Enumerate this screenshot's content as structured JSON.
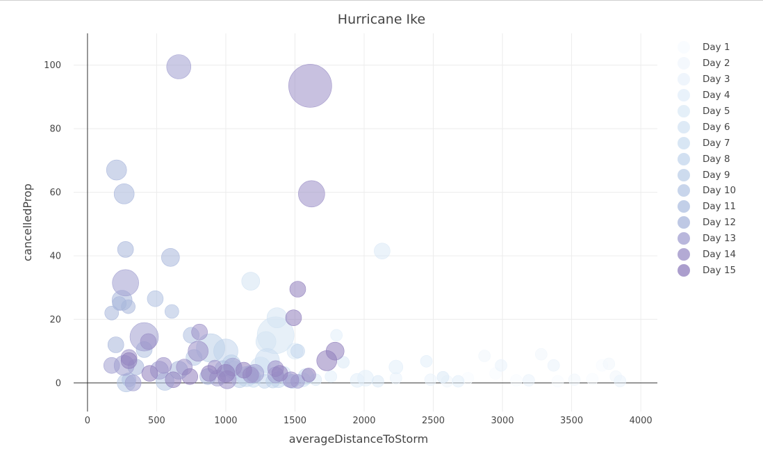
{
  "chart_data": {
    "type": "scatter",
    "title": "Hurricane Ike",
    "xlabel": "averageDistanceToStorm",
    "ylabel": "cancelledProp",
    "xlim": [
      -100,
      4120
    ],
    "ylim": [
      -9,
      110
    ],
    "xticks": [
      "0",
      "500",
      "1000",
      "1500",
      "2000",
      "2500",
      "3000",
      "3500",
      "4000"
    ],
    "xtick_values": [
      0,
      500,
      1000,
      1500,
      2000,
      2500,
      3000,
      3500,
      4000
    ],
    "yticks": [
      "0",
      "20",
      "40",
      "60",
      "80",
      "100"
    ],
    "ytick_values": [
      0,
      20,
      40,
      60,
      80,
      100
    ],
    "grid": true,
    "legend_position": "right",
    "size_encoding": "marker area varies by point",
    "series": [
      {
        "name": "Day 1",
        "color": "#f7fbff",
        "points": [
          [
            3400,
            0.5,
            3
          ],
          [
            3650,
            1.2,
            3
          ],
          [
            3720,
            5.5,
            3
          ],
          [
            2950,
            3,
            3
          ],
          [
            2750,
            1.5,
            3
          ],
          [
            3100,
            0.8,
            3
          ]
        ]
      },
      {
        "name": "Day 2",
        "color": "#f0f6fc",
        "points": [
          [
            3280,
            9,
            3
          ],
          [
            3770,
            6,
            3
          ],
          [
            2870,
            8.5,
            3
          ],
          [
            3520,
            1,
            3
          ],
          [
            3820,
            2,
            3
          ],
          [
            2600,
            0.5,
            3
          ]
        ]
      },
      {
        "name": "Day 3",
        "color": "#e9f2fb",
        "points": [
          [
            2990,
            5.5,
            3
          ],
          [
            3370,
            5.5,
            3
          ],
          [
            3190,
            0.8,
            3
          ],
          [
            2480,
            1,
            3
          ],
          [
            2230,
            1.5,
            3
          ],
          [
            3850,
            0.6,
            3
          ]
        ]
      },
      {
        "name": "Day 4",
        "color": "#e2eef9",
        "points": [
          [
            2450,
            6.8,
            3
          ],
          [
            1800,
            15,
            3
          ],
          [
            2230,
            5,
            4
          ],
          [
            2010,
            1.5,
            5
          ],
          [
            1760,
            2,
            3
          ],
          [
            2680,
            0.5,
            3
          ],
          [
            1950,
            0.8,
            4
          ]
        ]
      },
      {
        "name": "Day 5",
        "color": "#dbe9f6",
        "points": [
          [
            2130,
            41.5,
            5
          ],
          [
            1850,
            6.5,
            3
          ],
          [
            1500,
            10,
            5
          ],
          [
            2570,
            1.8,
            3
          ],
          [
            1650,
            1,
            3
          ],
          [
            2100,
            0.5,
            3
          ]
        ]
      },
      {
        "name": "Day 6",
        "color": "#d3e3f3",
        "points": [
          [
            1360,
            15,
            15
          ],
          [
            1370,
            20.5,
            7
          ],
          [
            1290,
            13,
            7
          ],
          [
            1180,
            32,
            6
          ],
          [
            1250,
            5,
            7
          ],
          [
            1560,
            1,
            4
          ],
          [
            1420,
            3,
            4
          ]
        ]
      },
      {
        "name": "Day 7",
        "color": "#cbddf0",
        "points": [
          [
            1300,
            7,
            9
          ],
          [
            1060,
            4,
            6
          ],
          [
            1580,
            2,
            5
          ],
          [
            1200,
            0.8,
            4
          ],
          [
            1450,
            1,
            4
          ]
        ]
      },
      {
        "name": "Day 8",
        "color": "#c3d6ec",
        "points": [
          [
            1000,
            10,
            9
          ],
          [
            1520,
            10,
            4
          ],
          [
            1150,
            2,
            7
          ],
          [
            1380,
            1,
            5
          ],
          [
            1280,
            0.5,
            4
          ]
        ]
      },
      {
        "name": "Day 9",
        "color": "#bccfe8",
        "points": [
          [
            890,
            11,
            11
          ],
          [
            1040,
            6,
            6
          ],
          [
            1180,
            3,
            5
          ],
          [
            1100,
            1,
            5
          ],
          [
            1340,
            0.6,
            4
          ]
        ]
      },
      {
        "name": "Day 10",
        "color": "#b5c7e4",
        "points": [
          [
            280,
            0,
            6
          ],
          [
            560,
            0.5,
            6
          ],
          [
            770,
            8,
            5
          ],
          [
            1010,
            3,
            5
          ],
          [
            1200,
            2,
            4
          ],
          [
            1480,
            0.5,
            4
          ]
        ]
      },
      {
        "name": "Day 11",
        "color": "#aebfe0",
        "points": [
          [
            410,
            10.5,
            5
          ],
          [
            490,
            26.5,
            5
          ],
          [
            750,
            15,
            5
          ],
          [
            610,
            22.5,
            4
          ],
          [
            980,
            4.5,
            5
          ],
          [
            300,
            1,
            4
          ]
        ]
      },
      {
        "name": "Day 12",
        "color": "#a8b6db",
        "points": [
          [
            210,
            67,
            7
          ],
          [
            265,
            59.5,
            7
          ],
          [
            275,
            42,
            5
          ],
          [
            600,
            39.5,
            6
          ],
          [
            250,
            26,
            7
          ],
          [
            230,
            25,
            4
          ],
          [
            295,
            24,
            4
          ],
          [
            175,
            22,
            4
          ],
          [
            205,
            12,
            5
          ],
          [
            350,
            5,
            5
          ],
          [
            660,
            4,
            6
          ],
          [
            870,
            2,
            5
          ]
        ]
      },
      {
        "name": "Day 13",
        "color": "#a19fd0",
        "points": [
          [
            660,
            99.5,
            9
          ],
          [
            275,
            31.5,
            10
          ],
          [
            410,
            14.5,
            11
          ],
          [
            175,
            5.5,
            5
          ],
          [
            265,
            5.5,
            7
          ],
          [
            520,
            4,
            6
          ],
          [
            1050,
            5,
            6
          ],
          [
            1210,
            3,
            6
          ],
          [
            1360,
            2.5,
            5
          ],
          [
            1520,
            0.5,
            4
          ],
          [
            940,
            1.5,
            5
          ],
          [
            330,
            0,
            5
          ]
        ]
      },
      {
        "name": "Day 14",
        "color": "#9a8ec6",
        "points": [
          [
            1610,
            93.5,
            18
          ],
          [
            1620,
            59.5,
            10
          ],
          [
            810,
            16,
            5
          ],
          [
            300,
            8,
            5
          ],
          [
            440,
            13,
            5
          ],
          [
            550,
            5.5,
            5
          ],
          [
            700,
            5,
            5
          ],
          [
            800,
            10,
            7
          ],
          [
            920,
            5,
            4
          ],
          [
            1010,
            1,
            6
          ],
          [
            1360,
            4.5,
            5
          ],
          [
            1470,
            1,
            5
          ],
          [
            1180,
            2.5,
            5
          ]
        ]
      },
      {
        "name": "Day 15",
        "color": "#8f7ebc",
        "points": [
          [
            1520,
            29.5,
            5
          ],
          [
            1490,
            20.5,
            5
          ],
          [
            1790,
            10,
            6
          ],
          [
            1730,
            7,
            7
          ],
          [
            1390,
            3,
            5
          ],
          [
            1600,
            2.5,
            4
          ],
          [
            1130,
            4,
            5
          ],
          [
            880,
            3,
            5
          ],
          [
            740,
            2,
            5
          ],
          [
            620,
            1,
            5
          ],
          [
            450,
            3,
            5
          ],
          [
            300,
            7,
            5
          ],
          [
            1000,
            3,
            6
          ]
        ]
      }
    ]
  }
}
